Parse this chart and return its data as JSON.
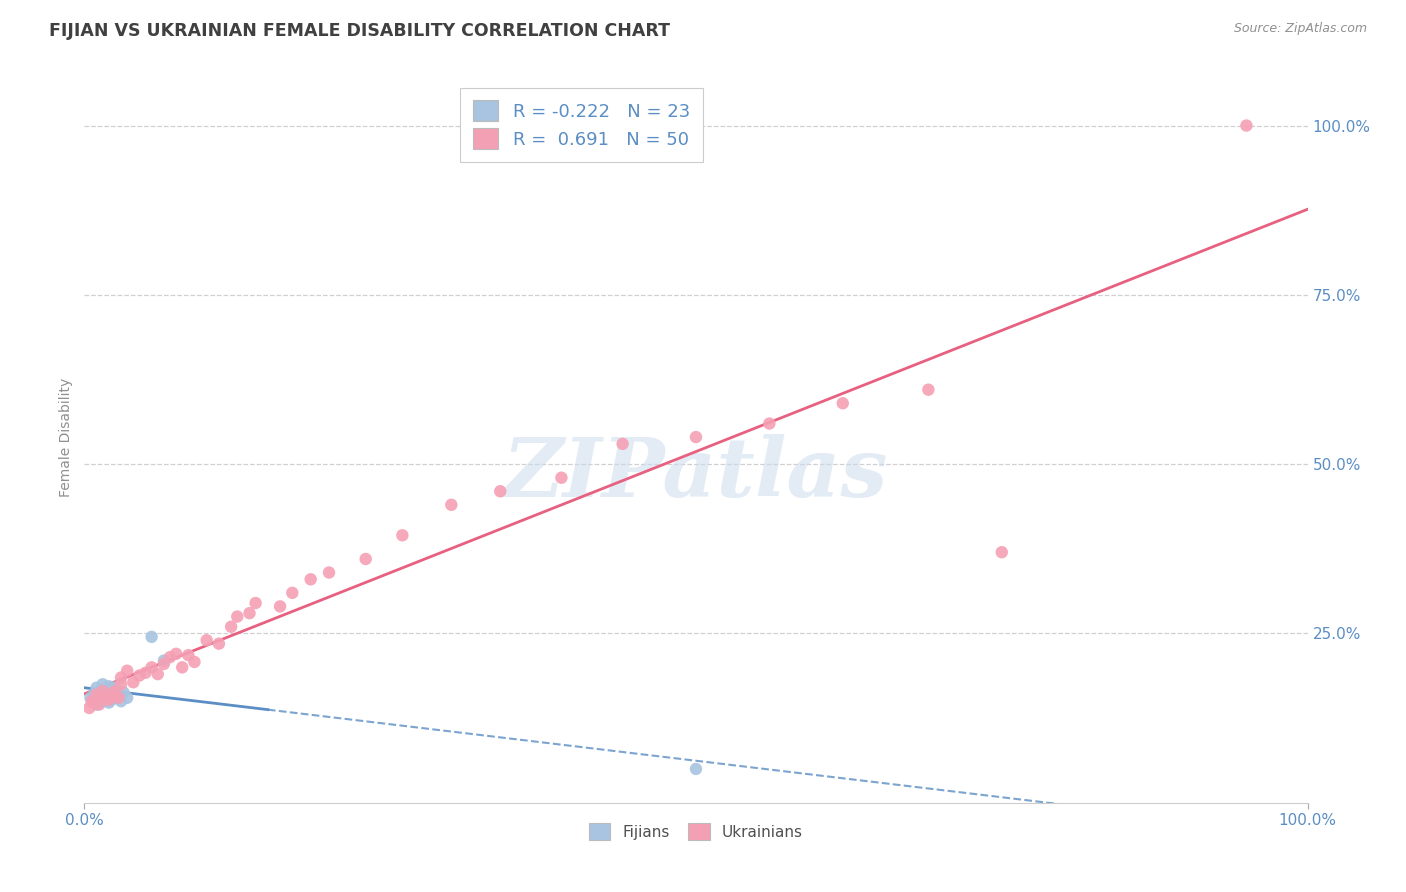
{
  "title": "FIJIAN VS UKRAINIAN FEMALE DISABILITY CORRELATION CHART",
  "source": "Source: ZipAtlas.com",
  "ylabel": "Female Disability",
  "xlim": [
    0.0,
    1.0
  ],
  "ylim": [
    0.0,
    1.08
  ],
  "background_color": "#ffffff",
  "grid_color": "#d0d0d0",
  "title_color": "#404040",
  "fijian_color": "#a8c4e0",
  "ukrainian_color": "#f4a0b4",
  "fijian_line_color": "#5b8ec4",
  "ukrainian_line_color": "#e86080",
  "fijian_line_solid_end": 0.15,
  "axis_label_color": "#909090",
  "tick_label_color": "#5b8ec4",
  "legend_fijian_label": "R = -0.222   N = 23",
  "legend_ukrainian_label": "R =  0.691   N = 50",
  "legend_box_fijian_color": "#a8c4e0",
  "legend_box_ukrainian_color": "#f4a0b4",
  "watermark_text": "ZIPatlas",
  "fijian_x": [
    0.005,
    0.008,
    0.01,
    0.01,
    0.012,
    0.013,
    0.015,
    0.015,
    0.018,
    0.018,
    0.02,
    0.02,
    0.022,
    0.023,
    0.025,
    0.025,
    0.028,
    0.03,
    0.032,
    0.035,
    0.055,
    0.065,
    0.5
  ],
  "fijian_y": [
    0.155,
    0.16,
    0.145,
    0.17,
    0.155,
    0.165,
    0.15,
    0.175,
    0.158,
    0.168,
    0.148,
    0.172,
    0.152,
    0.162,
    0.155,
    0.17,
    0.158,
    0.15,
    0.163,
    0.155,
    0.245,
    0.21,
    0.05
  ],
  "ukrainian_x": [
    0.004,
    0.006,
    0.008,
    0.01,
    0.01,
    0.012,
    0.015,
    0.015,
    0.018,
    0.02,
    0.022,
    0.025,
    0.025,
    0.028,
    0.03,
    0.03,
    0.035,
    0.04,
    0.045,
    0.05,
    0.055,
    0.06,
    0.065,
    0.07,
    0.075,
    0.08,
    0.085,
    0.09,
    0.1,
    0.11,
    0.12,
    0.125,
    0.135,
    0.14,
    0.16,
    0.17,
    0.185,
    0.2,
    0.23,
    0.26,
    0.3,
    0.34,
    0.39,
    0.44,
    0.5,
    0.56,
    0.62,
    0.69,
    0.75,
    0.95
  ],
  "ukrainian_y": [
    0.14,
    0.15,
    0.148,
    0.155,
    0.16,
    0.145,
    0.158,
    0.165,
    0.155,
    0.152,
    0.16,
    0.158,
    0.165,
    0.155,
    0.175,
    0.185,
    0.195,
    0.178,
    0.188,
    0.192,
    0.2,
    0.19,
    0.205,
    0.215,
    0.22,
    0.2,
    0.218,
    0.208,
    0.24,
    0.235,
    0.26,
    0.275,
    0.28,
    0.295,
    0.29,
    0.31,
    0.33,
    0.34,
    0.36,
    0.395,
    0.44,
    0.46,
    0.48,
    0.53,
    0.54,
    0.56,
    0.59,
    0.61,
    0.37,
    1.0
  ]
}
